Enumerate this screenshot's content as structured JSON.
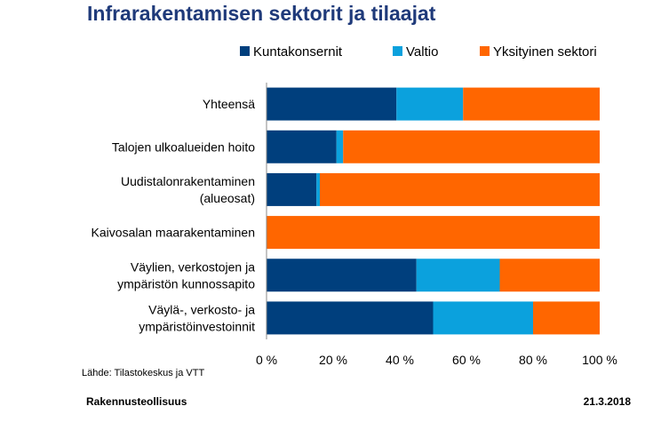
{
  "chart_data": {
    "type": "bar",
    "orientation": "horizontal",
    "stacked": "percent",
    "title": "Infrarakentamisen sektorit ja tilaajat",
    "categories": [
      "Yhteensä",
      "Talojen ulkoalueiden hoito",
      "Uudistalonrakentaminen (alueosat)",
      "Kaivosalan maarakentaminen",
      "Väylien, verkostojen ja ympäristön kunnossapito",
      "Väylä-, verkosto- ja ympäristöinvestoinnit"
    ],
    "category_lines": [
      [
        "Yhteensä"
      ],
      [
        "Talojen ulkoalueiden hoito"
      ],
      [
        "Uudistalonrakentaminen",
        "(alueosat)"
      ],
      [
        "Kaivosalan maarakentaminen"
      ],
      [
        "Väylien, verkostojen ja",
        "ympäristön kunnossapito"
      ],
      [
        "Väylä-, verkosto- ja",
        "ympäristöinvestoinnit"
      ]
    ],
    "series": [
      {
        "name": "Kuntakonsernit",
        "color": "#003f7d",
        "values": [
          39,
          21,
          15,
          0,
          45,
          50
        ]
      },
      {
        "name": "Valtio",
        "color": "#0ba1dd",
        "values": [
          20,
          2,
          1,
          0,
          25,
          30
        ]
      },
      {
        "name": "Yksityinen sektori",
        "color": "#ff6600",
        "values": [
          41,
          77,
          84,
          100,
          30,
          20
        ]
      }
    ],
    "xlim": [
      0,
      100
    ],
    "x_ticks": [
      0,
      20,
      40,
      60,
      80,
      100
    ],
    "x_tick_labels": [
      "0 %",
      "20 %",
      "40 %",
      "60 %",
      "80 %",
      "100 %"
    ],
    "legend_position": "top",
    "grid": false
  },
  "source_note": "Lähde: Tilastokeskus ja VTT",
  "footer": {
    "left": "Rakennusteollisuus",
    "right": "21.3.2018"
  }
}
